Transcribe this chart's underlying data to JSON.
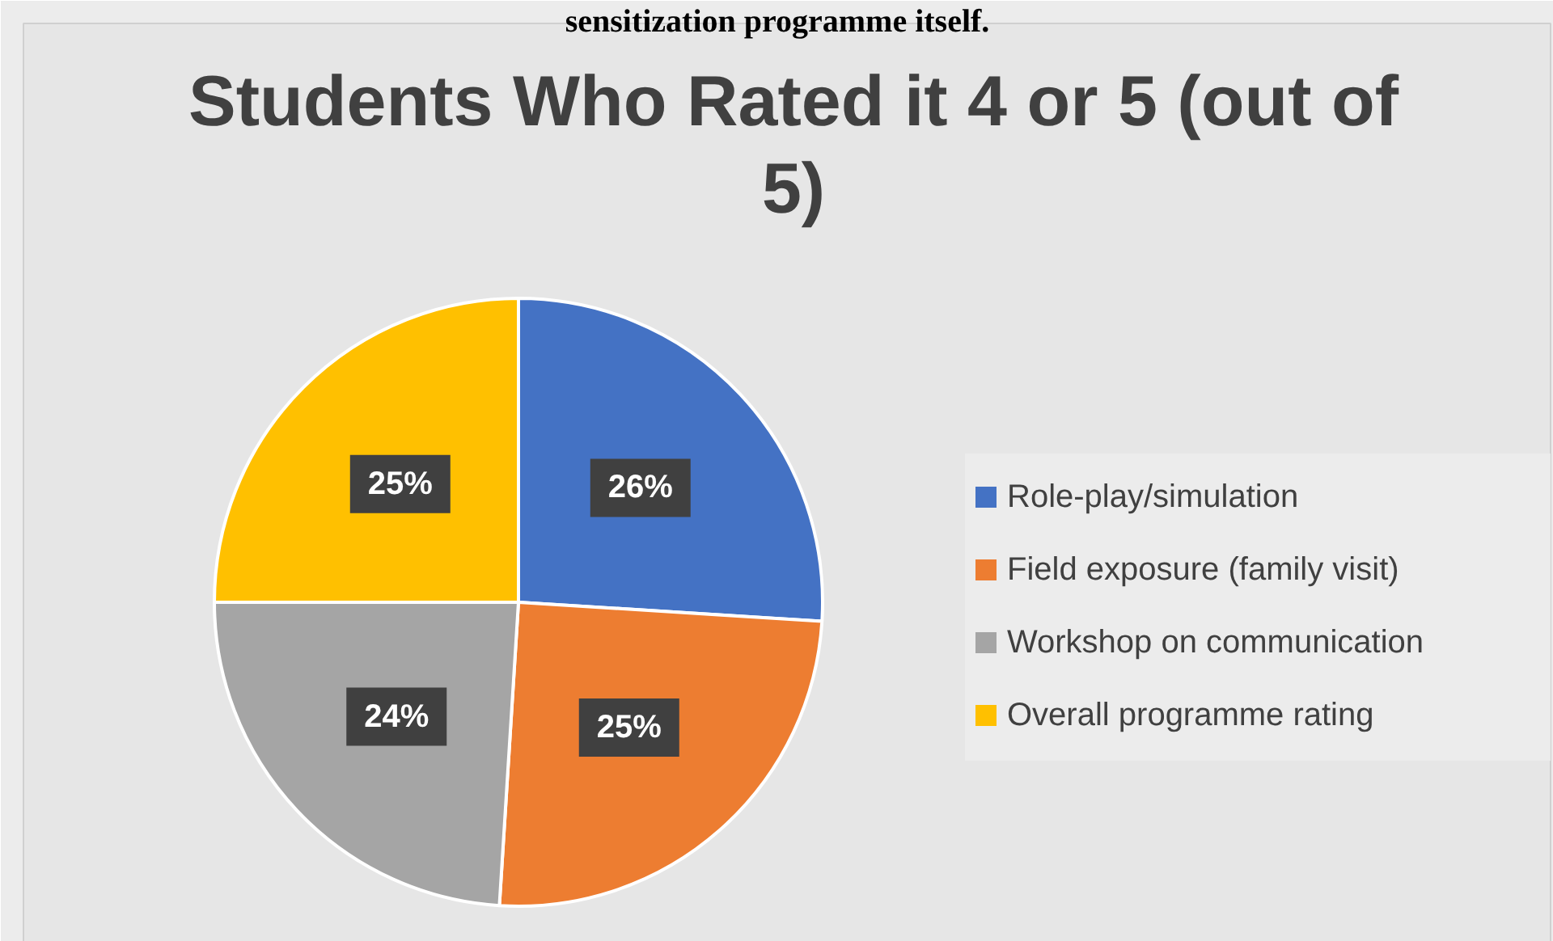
{
  "chart_data": {
    "type": "pie",
    "title": "Students Who Rated it 4 or 5 (out of 5)",
    "annotations": [
      "sensitization programme itself."
    ],
    "categories": [
      "Role-play/simulation",
      "Field exposure (family visit)",
      "Workshop on communication",
      "Overall programme rating"
    ],
    "values": [
      26,
      25,
      24,
      25
    ],
    "colors": [
      "#4472c4",
      "#ed7d31",
      "#a5a5a5",
      "#ffc000"
    ],
    "value_labels": [
      "26%",
      "25%",
      "24%",
      "25%"
    ],
    "legend": "right"
  }
}
